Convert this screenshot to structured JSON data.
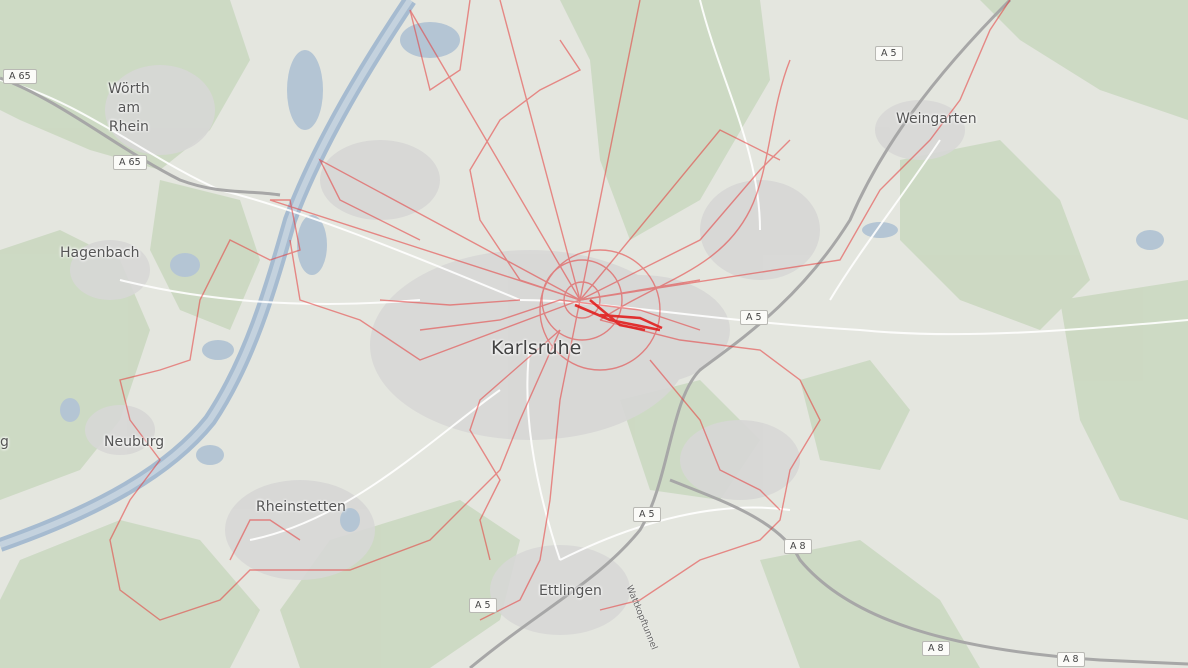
{
  "map": {
    "colors": {
      "background": "#e4e6df",
      "forest": "#c9d7bf",
      "urban": "#d7d7d6",
      "water": "#b4c5d4",
      "river": "#a6bbd0",
      "highway": "#a7a7a7",
      "track": "#e63a3a"
    },
    "places": [
      {
        "id": "woerth",
        "name": "Wörth\nam\nRhein"
      },
      {
        "id": "hagenbach",
        "name": "Hagenbach"
      },
      {
        "id": "neuburg",
        "name": "Neuburg"
      },
      {
        "id": "rheinstetten",
        "name": "Rheinstetten"
      },
      {
        "id": "karlsruhe",
        "name": "Karlsruhe"
      },
      {
        "id": "weingarten",
        "name": "Weingarten"
      },
      {
        "id": "ettlingen",
        "name": "Ettlingen"
      },
      {
        "id": "edge-g",
        "name": "g"
      }
    ],
    "road_shields": [
      {
        "id": "a65-top",
        "label": "A 65"
      },
      {
        "id": "a65-mid",
        "label": "A 65"
      },
      {
        "id": "a5-top",
        "label": "A 5"
      },
      {
        "id": "a5-mid",
        "label": "A 5"
      },
      {
        "id": "a5-low",
        "label": "A 5"
      },
      {
        "id": "a5-bottom",
        "label": "A 5"
      },
      {
        "id": "a8-mid",
        "label": "A 8"
      },
      {
        "id": "a8-low",
        "label": "A 8"
      },
      {
        "id": "a8-corner",
        "label": "A 8"
      }
    ],
    "road_labels": [
      {
        "id": "wattkopftunnel",
        "label": "Wattkopftunnel"
      }
    ]
  }
}
